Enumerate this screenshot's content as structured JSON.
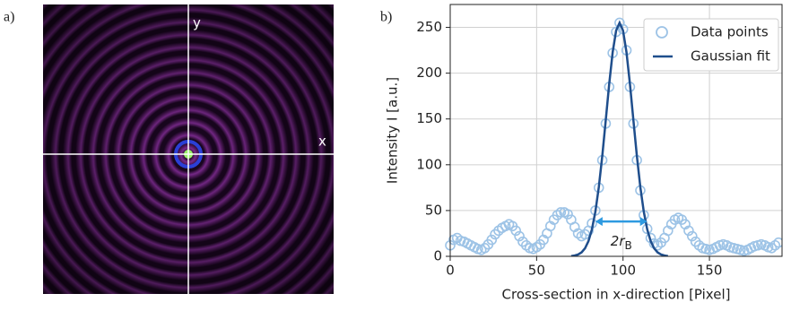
{
  "panel_a": {
    "label": "a)",
    "x_label": "x",
    "y_label": "y"
  },
  "chart_data": {
    "type": "scatter",
    "panel_label": "b)",
    "x_label": "Cross-section in x-direction [Pixel]",
    "y_label": "Intensity I [a.u.]",
    "x": [
      0,
      2,
      4,
      6,
      8,
      10,
      12,
      14,
      16,
      18,
      20,
      22,
      24,
      26,
      28,
      30,
      32,
      34,
      36,
      38,
      40,
      42,
      44,
      46,
      48,
      50,
      52,
      54,
      56,
      58,
      60,
      62,
      64,
      66,
      68,
      70,
      72,
      74,
      76,
      78,
      80,
      82,
      84,
      86,
      88,
      90,
      92,
      94,
      96,
      98,
      100,
      102,
      104,
      106,
      108,
      110,
      112,
      114,
      116,
      118,
      120,
      122,
      124,
      126,
      128,
      130,
      132,
      134,
      136,
      138,
      140,
      142,
      144,
      146,
      148,
      150,
      152,
      154,
      156,
      158,
      160,
      162,
      164,
      166,
      168,
      170,
      172,
      174,
      176,
      178,
      180,
      182,
      184,
      186,
      188,
      190
    ],
    "series": [
      {
        "name": "Data points",
        "mode": "markers",
        "color": "#9dc3e6",
        "values": [
          12,
          18,
          20,
          17,
          16,
          14,
          12,
          10,
          8,
          7,
          9,
          13,
          18,
          24,
          28,
          31,
          33,
          35,
          33,
          28,
          22,
          16,
          12,
          9,
          8,
          10,
          13,
          18,
          25,
          33,
          40,
          45,
          48,
          48,
          46,
          40,
          32,
          25,
          22,
          24,
          28,
          36,
          50,
          75,
          105,
          145,
          185,
          222,
          245,
          255,
          248,
          225,
          185,
          145,
          105,
          72,
          45,
          30,
          20,
          14,
          12,
          15,
          20,
          28,
          35,
          40,
          42,
          40,
          35,
          28,
          22,
          16,
          12,
          9,
          8,
          7,
          8,
          10,
          12,
          13,
          12,
          10,
          9,
          8,
          7,
          6,
          7,
          9,
          11,
          12,
          13,
          12,
          10,
          9,
          12,
          15
        ]
      },
      {
        "name": "Gaussian fit",
        "mode": "line",
        "color": "#1f4e8c",
        "values": [
          null,
          null,
          null,
          null,
          null,
          null,
          null,
          null,
          null,
          null,
          null,
          null,
          null,
          null,
          null,
          null,
          null,
          null,
          null,
          null,
          null,
          null,
          null,
          null,
          null,
          null,
          null,
          null,
          null,
          null,
          null,
          null,
          null,
          null,
          null,
          0.3,
          0.9,
          2.0,
          4.3,
          8.7,
          16.6,
          29.4,
          48.8,
          75.7,
          109.7,
          148.6,
          188.2,
          222.8,
          246.5,
          255,
          246.5,
          222.8,
          188.2,
          148.6,
          109.7,
          75.7,
          48.8,
          29.4,
          16.6,
          8.7,
          4.3,
          2.0,
          0.9,
          0.3,
          null,
          null,
          null,
          null,
          null,
          null,
          null,
          null,
          null,
          null,
          null,
          null,
          null,
          null,
          null,
          null,
          null,
          null,
          null,
          null,
          null,
          null,
          null,
          null,
          null,
          null,
          null,
          null,
          null,
          null,
          null,
          null
        ]
      }
    ],
    "annotation": {
      "text": "2r",
      "subscript": "B",
      "x": [
        84,
        114
      ],
      "y": 38,
      "color": "#2e9ae0"
    },
    "xlim": [
      0,
      192
    ],
    "ylim": [
      0,
      275
    ],
    "xticks": [
      0,
      50,
      100,
      150
    ],
    "yticks": [
      0,
      50,
      100,
      150,
      200,
      250
    ],
    "grid": true,
    "legend": "upper right"
  }
}
